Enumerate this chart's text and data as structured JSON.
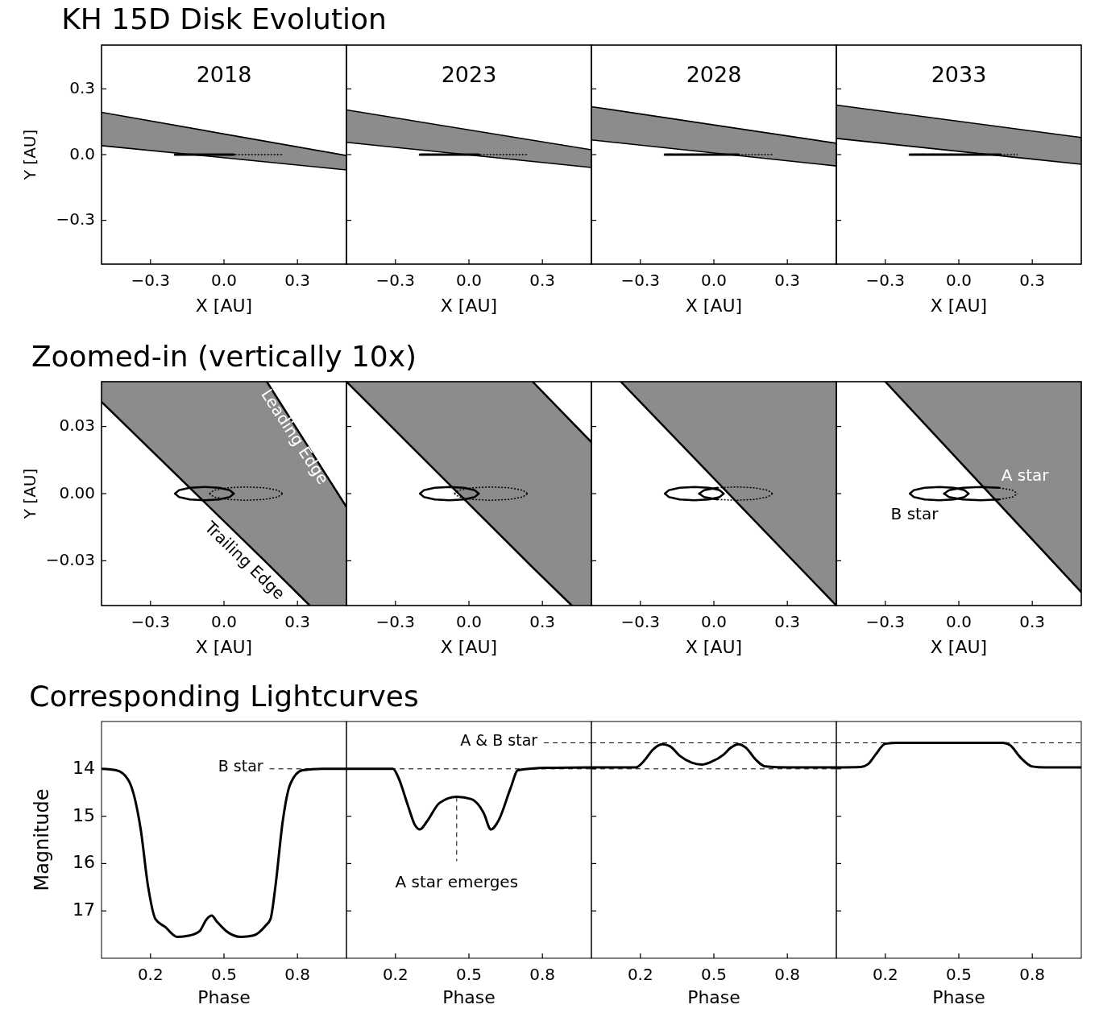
{
  "chart_data": [
    {
      "type": "line",
      "title": "KH 15D Disk Evolution",
      "annotations": [
        "2018"
      ],
      "xlabel": "X [AU]",
      "ylabel": "Y [AU]",
      "xlim": [
        -0.5,
        0.5
      ],
      "ylim": [
        -0.5,
        0.5
      ],
      "xticks": [
        {
          "value": -0.3,
          "label": "−0.3"
        },
        {
          "value": 0,
          "label": "0.0"
        },
        {
          "value": 0.3,
          "label": "0.3"
        }
      ],
      "yticks": [
        {
          "value": -0.3,
          "label": "−0.3"
        },
        {
          "value": 0,
          "label": "0.0"
        },
        {
          "value": 0.3,
          "label": "0.3"
        }
      ],
      "series": [
        {
          "color": "#000000",
          "line_style": "solid",
          "x": [
            -0.5,
            0.5
          ],
          "values": [
            0.041,
            -0.07
          ],
          "lower": [
            0.041,
            -0.07
          ],
          "upper": [
            0.193,
            -0.004
          ]
        },
        {
          "color": "#000000",
          "line_style": "solid",
          "x": [
            -0.5,
            0.5
          ],
          "values": [
            0.193,
            -0.004
          ]
        },
        {
          "color": "#000000",
          "line_style": "solid",
          "x": [
            -0.2,
            0.04
          ],
          "values": [
            0,
            0
          ]
        },
        {
          "color": "#000000",
          "line_style": "dotted",
          "x": [
            -0.06,
            0.24
          ],
          "values": [
            0,
            0
          ]
        }
      ]
    },
    {
      "type": "line",
      "annotations": [
        "2023"
      ],
      "xlabel": "X [AU]",
      "tick_labels": "x",
      "xlim": [
        -0.5,
        0.5
      ],
      "ylim": [
        -0.5,
        0.5
      ],
      "xticks": [
        {
          "value": -0.3,
          "label": "−0.3"
        },
        {
          "value": 0,
          "label": "0.0"
        },
        {
          "value": 0.3,
          "label": "0.3"
        }
      ],
      "yticks": [
        {
          "value": -0.3,
          "label": null
        },
        {
          "value": 0,
          "label": null
        },
        {
          "value": 0.3,
          "label": null
        }
      ],
      "series": [
        {
          "color": "#000000",
          "line_style": "solid",
          "x": [
            -0.5,
            0.5
          ],
          "values": [
            0.056,
            -0.059
          ],
          "lower": [
            0.056,
            -0.059
          ],
          "upper": [
            0.204,
            0.022
          ]
        },
        {
          "color": "#000000",
          "line_style": "solid",
          "x": [
            -0.5,
            0.5
          ],
          "values": [
            0.204,
            0.022
          ]
        },
        {
          "color": "#000000",
          "line_style": "solid",
          "x": [
            -0.2,
            0.04
          ],
          "values": [
            0,
            0
          ]
        },
        {
          "color": "#000000",
          "line_style": "dotted",
          "x": [
            -0.06,
            0.24
          ],
          "values": [
            0,
            0
          ]
        }
      ]
    },
    {
      "type": "line",
      "annotations": [
        "2028"
      ],
      "xlabel": "X [AU]",
      "tick_labels": "x",
      "xlim": [
        -0.5,
        0.5
      ],
      "ylim": [
        -0.5,
        0.5
      ],
      "xticks": [
        {
          "value": -0.3,
          "label": "−0.3"
        },
        {
          "value": 0,
          "label": "0.0"
        },
        {
          "value": 0.3,
          "label": "0.3"
        }
      ],
      "yticks": [
        {
          "value": -0.3,
          "label": null
        },
        {
          "value": 0,
          "label": null
        },
        {
          "value": 0.3,
          "label": null
        }
      ],
      "series": [
        {
          "color": "#000000",
          "line_style": "solid",
          "x": [
            -0.5,
            0.5
          ],
          "values": [
            0.067,
            -0.052
          ],
          "lower": [
            0.067,
            -0.052
          ],
          "upper": [
            0.219,
            0.052
          ]
        },
        {
          "color": "#000000",
          "line_style": "solid",
          "x": [
            -0.5,
            0.5
          ],
          "values": [
            0.219,
            0.052
          ]
        },
        {
          "color": "#000000",
          "line_style": "solid",
          "x": [
            -0.2,
            0.1
          ],
          "values": [
            0,
            0
          ]
        },
        {
          "color": "#000000",
          "line_style": "dotted",
          "x": [
            0.1,
            0.24
          ],
          "values": [
            0,
            0
          ]
        }
      ]
    },
    {
      "type": "line",
      "annotations": [
        "2033"
      ],
      "xlabel": "X [AU]",
      "tick_labels": "x",
      "xlim": [
        -0.5,
        0.5
      ],
      "ylim": [
        -0.5,
        0.5
      ],
      "xticks": [
        {
          "value": -0.3,
          "label": "−0.3"
        },
        {
          "value": 0,
          "label": "0.0"
        },
        {
          "value": 0.3,
          "label": "0.3"
        }
      ],
      "yticks": [
        {
          "value": -0.3,
          "label": null
        },
        {
          "value": 0,
          "label": null
        },
        {
          "value": 0.3,
          "label": null
        }
      ],
      "series": [
        {
          "color": "#000000",
          "line_style": "solid",
          "x": [
            -0.5,
            0.5
          ],
          "values": [
            0.074,
            -0.044
          ],
          "lower": [
            0.074,
            -0.044
          ],
          "upper": [
            0.226,
            0.078
          ]
        },
        {
          "color": "#000000",
          "line_style": "solid",
          "x": [
            -0.5,
            0.5
          ],
          "values": [
            0.226,
            0.078
          ]
        },
        {
          "color": "#000000",
          "line_style": "solid",
          "x": [
            -0.2,
            0.17
          ],
          "values": [
            0,
            0
          ]
        },
        {
          "color": "#000000",
          "line_style": "dotted",
          "x": [
            0.17,
            0.24
          ],
          "values": [
            0,
            0
          ]
        }
      ]
    },
    {
      "type": "line",
      "title": "Zoomed-in (vertically 10x)",
      "annotations": [
        "Leading Edge",
        "Trailing Edge"
      ],
      "xlabel": "X [AU]",
      "ylabel": "Y [AU]",
      "xlim": [
        -0.5,
        0.5
      ],
      "ylim": [
        -0.05,
        0.05
      ],
      "xticks": [
        {
          "value": -0.3,
          "label": "−0.3"
        },
        {
          "value": 0,
          "label": "0.0"
        },
        {
          "value": 0.3,
          "label": "0.3"
        }
      ],
      "yticks": [
        {
          "value": -0.03,
          "label": "−0.03"
        },
        {
          "value": 0,
          "label": "0.00"
        },
        {
          "value": 0.03,
          "label": "0.03"
        }
      ],
      "series": [
        {
          "color": "#000000",
          "line_style": "solid",
          "x": [
            -0.5,
            0.175,
            0.35,
            0.5
          ],
          "values": [
            0.041,
            -0.031,
            -0.05,
            null
          ],
          "lower": [
            0.041,
            -0.031,
            -0.05,
            -0.05
          ],
          "upper": [
            0.05,
            0.05,
            0.02,
            -0.006
          ]
        },
        {
          "color": "#000000",
          "line_style": "solid",
          "x": [
            0.175,
            0.5
          ],
          "values": [
            0.05,
            -0.006
          ]
        },
        {
          "color": "#000000",
          "line_style": "solid",
          "x": [
            -0.2,
            -0.184,
            -0.14,
            -0.08,
            -0.02,
            0.024,
            0.04
          ],
          "values": [
            0,
            0.0015,
            0.0026,
            0.003,
            0.0026,
            0.0015,
            0
          ]
        },
        {
          "color": "#000000",
          "line_style": "solid",
          "x": [
            -0.2,
            -0.184,
            -0.14,
            -0.08,
            -0.02,
            0.024,
            0.04
          ],
          "values": [
            0,
            -0.0015,
            -0.0026,
            -0.003,
            -0.0026,
            -0.0015,
            0
          ]
        },
        {
          "color": "#000000",
          "line_style": "dotted",
          "x": [
            -0.06,
            -0.04,
            0.015,
            0.09,
            0.165,
            0.22,
            0.24
          ],
          "values": [
            0,
            0.0015,
            0.0026,
            0.003,
            0.0026,
            0.0015,
            0
          ]
        },
        {
          "color": "#000000",
          "line_style": "dotted",
          "x": [
            -0.06,
            -0.04,
            0.015,
            0.09,
            0.165,
            0.22,
            0.24
          ],
          "values": [
            0,
            -0.0015,
            -0.0026,
            -0.003,
            -0.0026,
            -0.0015,
            0
          ]
        }
      ]
    },
    {
      "type": "line",
      "xlabel": "X [AU]",
      "tick_labels": "x",
      "xlim": [
        -0.5,
        0.5
      ],
      "ylim": [
        -0.05,
        0.05
      ],
      "xticks": [
        {
          "value": -0.3,
          "label": "−0.3"
        },
        {
          "value": 0,
          "label": "0.0"
        },
        {
          "value": 0.3,
          "label": "0.3"
        }
      ],
      "yticks": [
        {
          "value": -0.03,
          "label": null
        },
        {
          "value": 0,
          "label": null
        },
        {
          "value": 0.03,
          "label": null
        }
      ],
      "series": [
        {
          "color": "#000000",
          "line_style": "solid",
          "x": [
            -0.5,
            0.26,
            0.42,
            0.5
          ],
          "values": [
            0.05,
            -0.033,
            -0.05,
            null
          ],
          "lower": [
            0.05,
            -0.033,
            -0.05,
            -0.05
          ],
          "upper": [
            0.05,
            0.05,
            0.032,
            0.023
          ]
        },
        {
          "color": "#000000",
          "line_style": "solid",
          "x": [
            0.26,
            0.5
          ],
          "values": [
            0.05,
            0.023
          ]
        },
        {
          "color": "#000000",
          "line_style": "solid",
          "x": [
            -0.2,
            -0.184,
            -0.14,
            -0.08,
            -0.02,
            0.024,
            0.04
          ],
          "values": [
            0,
            0.0015,
            0.0026,
            0.003,
            0.0026,
            0.0015,
            0
          ]
        },
        {
          "color": "#000000",
          "line_style": "solid",
          "x": [
            -0.2,
            -0.184,
            -0.14,
            -0.08,
            -0.02,
            0.024,
            0.04
          ],
          "values": [
            0,
            -0.0015,
            -0.0026,
            -0.003,
            -0.0026,
            -0.0015,
            0
          ]
        },
        {
          "color": "#000000",
          "line_style": "dotted",
          "x": [
            -0.06,
            -0.04,
            0.015,
            0.09,
            0.165,
            0.22,
            0.24
          ],
          "values": [
            0,
            0.0015,
            0.0026,
            0.003,
            0.0026,
            0.0015,
            0
          ]
        },
        {
          "color": "#000000",
          "line_style": "dotted",
          "x": [
            -0.06,
            -0.04,
            0.015,
            0.09,
            0.165,
            0.22,
            0.24
          ],
          "values": [
            0,
            -0.0015,
            -0.0026,
            -0.003,
            -0.0026,
            -0.0015,
            0
          ]
        }
      ]
    },
    {
      "type": "line",
      "xlabel": "X [AU]",
      "tick_labels": "x",
      "xlim": [
        -0.5,
        0.5
      ],
      "ylim": [
        -0.05,
        0.05
      ],
      "xticks": [
        {
          "value": -0.3,
          "label": "−0.3"
        },
        {
          "value": 0,
          "label": "0.0"
        },
        {
          "value": 0.3,
          "label": "0.3"
        }
      ],
      "yticks": [
        {
          "value": -0.03,
          "label": null
        },
        {
          "value": 0,
          "label": null
        },
        {
          "value": 0.03,
          "label": null
        }
      ],
      "series": [
        {
          "color": "#000000",
          "line_style": "solid",
          "x": [
            -0.38,
            0.5
          ],
          "values": [
            0.05,
            -0.05
          ],
          "lower": [
            0.05,
            -0.05
          ],
          "upper": [
            0.05,
            0.05
          ]
        },
        {
          "color": "#000000",
          "line_style": "solid",
          "x": [
            -0.2,
            -0.184,
            -0.14,
            -0.08,
            -0.02,
            0.024,
            0.04
          ],
          "values": [
            0,
            0.0015,
            0.0026,
            0.003,
            0.0026,
            0.0015,
            0
          ]
        },
        {
          "color": "#000000",
          "line_style": "solid",
          "x": [
            -0.2,
            -0.184,
            -0.14,
            -0.08,
            -0.02,
            0.024,
            0.04
          ],
          "values": [
            0,
            -0.0015,
            -0.0026,
            -0.003,
            -0.0026,
            -0.0015,
            0
          ]
        },
        {
          "color": "#000000",
          "line_style": "solid",
          "x": [
            -0.06,
            -0.04,
            0.015
          ],
          "values": [
            0,
            0.0015,
            0.0026
          ]
        },
        {
          "color": "#000000",
          "line_style": "solid",
          "x": [
            -0.06,
            -0.04,
            0.015
          ],
          "values": [
            0,
            -0.0015,
            -0.0026
          ]
        },
        {
          "color": "#000000",
          "line_style": "dotted",
          "x": [
            0.015,
            0.09,
            0.165,
            0.22,
            0.24
          ],
          "values": [
            0.0026,
            0.003,
            0.0026,
            0.0015,
            0
          ]
        },
        {
          "color": "#000000",
          "line_style": "dotted",
          "x": [
            0.015,
            0.09,
            0.165,
            0.22,
            0.24
          ],
          "values": [
            -0.0026,
            -0.003,
            -0.0026,
            -0.0015,
            0
          ]
        }
      ]
    },
    {
      "type": "line",
      "annotations": [
        "A star",
        "B star"
      ],
      "xlabel": "X [AU]",
      "tick_labels": "x",
      "xlim": [
        -0.5,
        0.5
      ],
      "ylim": [
        -0.05,
        0.05
      ],
      "xticks": [
        {
          "value": -0.3,
          "label": "−0.3"
        },
        {
          "value": 0,
          "label": "0.0"
        },
        {
          "value": 0.3,
          "label": "0.3"
        }
      ],
      "yticks": [
        {
          "value": -0.03,
          "label": null
        },
        {
          "value": 0,
          "label": null
        },
        {
          "value": 0.03,
          "label": null
        }
      ],
      "series": [
        {
          "color": "#000000",
          "line_style": "solid",
          "x": [
            -0.3,
            0.5
          ],
          "values": [
            0.05,
            -0.044
          ],
          "lower": [
            0.05,
            -0.044
          ],
          "upper": [
            0.05,
            0.05
          ]
        },
        {
          "color": "#000000",
          "line_style": "solid",
          "x": [
            -0.2,
            -0.184,
            -0.14,
            -0.08,
            -0.02,
            0.024,
            0.04
          ],
          "values": [
            0,
            0.0015,
            0.0026,
            0.003,
            0.0026,
            0.0015,
            0
          ]
        },
        {
          "color": "#000000",
          "line_style": "solid",
          "x": [
            -0.2,
            -0.184,
            -0.14,
            -0.08,
            -0.02,
            0.024,
            0.04
          ],
          "values": [
            0,
            -0.0015,
            -0.0026,
            -0.003,
            -0.0026,
            -0.0015,
            0
          ]
        },
        {
          "color": "#000000",
          "line_style": "solid",
          "x": [
            -0.06,
            -0.04,
            0.015,
            0.09,
            0.165
          ],
          "values": [
            0,
            0.0015,
            0.0026,
            0.003,
            0.0026
          ]
        },
        {
          "color": "#000000",
          "line_style": "solid",
          "x": [
            -0.06,
            -0.04,
            0.015,
            0.09,
            0.165
          ],
          "values": [
            0,
            -0.0015,
            -0.0026,
            -0.003,
            -0.0026
          ]
        },
        {
          "color": "#000000",
          "line_style": "dotted",
          "x": [
            0.165,
            0.22,
            0.24
          ],
          "values": [
            0.0026,
            0.0015,
            0
          ]
        },
        {
          "color": "#000000",
          "line_style": "dotted",
          "x": [
            0.165,
            0.22,
            0.24
          ],
          "values": [
            -0.0026,
            -0.0015,
            0
          ]
        }
      ]
    },
    {
      "type": "line",
      "title": "Corresponding Lightcurves",
      "xlabel": "Phase",
      "ylabel": "Magnitude",
      "xlim": [
        0,
        1
      ],
      "ylim": [
        18,
        13
      ],
      "xticks": [
        0.2,
        0.5,
        0.8
      ],
      "yticks": [
        14,
        15,
        16,
        17
      ],
      "ref_lines": [
        {
          "axis": "y",
          "value": 14,
          "label": "B star",
          "line_style": "dashed"
        }
      ],
      "series": [
        {
          "color": "#000000",
          "line_style": "solid",
          "x": [
            0,
            0.06,
            0.11,
            0.16,
            0.19,
            0.22,
            0.26,
            0.31,
            0.36,
            0.4,
            0.43,
            0.45,
            0.47,
            0.51,
            0.57,
            0.62,
            0.67,
            0.69,
            0.71,
            0.74,
            0.77,
            0.82,
            0.9,
            1
          ],
          "values": [
            14,
            14.03,
            14.24,
            15.28,
            16.48,
            17.17,
            17.34,
            17.55,
            17.52,
            17.43,
            17.17,
            17.1,
            17.22,
            17.43,
            17.55,
            17.52,
            17.31,
            17.17,
            16.48,
            15.1,
            14.33,
            14.03,
            14,
            14
          ]
        }
      ]
    },
    {
      "type": "line",
      "annotations": [
        {
          "text": "A star emerges",
          "x": 0.45,
          "y": 14.59
        }
      ],
      "xlabel": "Phase",
      "tick_labels": "x",
      "xlim": [
        0,
        1
      ],
      "ylim": [
        18,
        13
      ],
      "xticks": [
        0.2,
        0.5,
        0.8
      ],
      "yticks": [
        14,
        15,
        16,
        17
      ],
      "ref_lines": [
        {
          "axis": "y",
          "value": 14,
          "line_style": "dashed"
        },
        {
          "axis": "y",
          "value": 13.45,
          "label": "A & B star",
          "line_style": "dashed"
        }
      ],
      "series": [
        {
          "color": "#000000",
          "line_style": "solid",
          "x": [
            0,
            0.19,
            0.21,
            0.25,
            0.28,
            0.3,
            0.33,
            0.38,
            0.45,
            0.51,
            0.56,
            0.59,
            0.62,
            0.67,
            0.7,
            0.82,
            1
          ],
          "values": [
            14,
            14,
            14.16,
            14.76,
            15.19,
            15.28,
            15.1,
            14.72,
            14.59,
            14.64,
            14.93,
            15.28,
            15.1,
            14.41,
            14.03,
            13.98,
            13.97
          ]
        }
      ]
    },
    {
      "type": "line",
      "xlabel": "Phase",
      "tick_labels": "x",
      "xlim": [
        0,
        1
      ],
      "ylim": [
        18,
        13
      ],
      "xticks": [
        0.2,
        0.5,
        0.8
      ],
      "yticks": [
        14,
        15,
        16,
        17
      ],
      "ref_lines": [
        {
          "axis": "y",
          "value": 14,
          "line_style": "dashed"
        },
        {
          "axis": "y",
          "value": 13.45,
          "line_style": "dashed"
        }
      ],
      "series": [
        {
          "color": "#000000",
          "line_style": "solid",
          "x": [
            0,
            0.18,
            0.22,
            0.25,
            0.29,
            0.32,
            0.36,
            0.41,
            0.45,
            0.49,
            0.54,
            0.57,
            0.6,
            0.63,
            0.67,
            0.71,
            0.8,
            1
          ],
          "values": [
            13.97,
            13.97,
            13.8,
            13.6,
            13.48,
            13.52,
            13.72,
            13.87,
            13.91,
            13.85,
            13.7,
            13.55,
            13.48,
            13.55,
            13.8,
            13.95,
            13.97,
            13.97
          ]
        }
      ]
    },
    {
      "type": "line",
      "xlabel": "Phase",
      "tick_labels": "x",
      "xlim": [
        0,
        1
      ],
      "ylim": [
        18,
        13
      ],
      "xticks": [
        0.2,
        0.5,
        0.8
      ],
      "yticks": [
        14,
        15,
        16,
        17
      ],
      "ref_lines": [
        {
          "axis": "y",
          "value": 13.45,
          "line_style": "dashed"
        }
      ],
      "series": [
        {
          "color": "#000000",
          "line_style": "solid",
          "x": [
            0,
            0.1,
            0.13,
            0.16,
            0.2,
            0.25,
            0.5,
            0.68,
            0.71,
            0.75,
            0.8,
            0.85,
            1
          ],
          "values": [
            13.97,
            13.96,
            13.9,
            13.7,
            13.47,
            13.45,
            13.45,
            13.45,
            13.5,
            13.75,
            13.95,
            13.97,
            13.97
          ]
        }
      ]
    }
  ]
}
